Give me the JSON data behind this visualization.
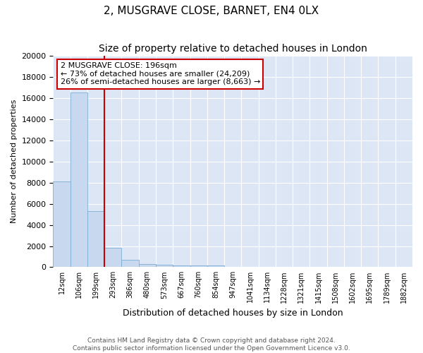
{
  "title1": "2, MUSGRAVE CLOSE, BARNET, EN4 0LX",
  "title2": "Size of property relative to detached houses in London",
  "xlabel": "Distribution of detached houses by size in London",
  "ylabel": "Number of detached properties",
  "annotation_title": "2 MUSGRAVE CLOSE: 196sqm",
  "annotation_line1": "← 73% of detached houses are smaller (24,209)",
  "annotation_line2": "26% of semi-detached houses are larger (8,663) →",
  "footer1": "Contains HM Land Registry data © Crown copyright and database right 2024.",
  "footer2": "Contains public sector information licensed under the Open Government Licence v3.0.",
  "bin_labels": [
    "12sqm",
    "106sqm",
    "199sqm",
    "293sqm",
    "386sqm",
    "480sqm",
    "573sqm",
    "667sqm",
    "760sqm",
    "854sqm",
    "947sqm",
    "1041sqm",
    "1134sqm",
    "1228sqm",
    "1321sqm",
    "1415sqm",
    "1508sqm",
    "1602sqm",
    "1695sqm",
    "1789sqm",
    "1882sqm"
  ],
  "bar_values": [
    8100,
    16500,
    5300,
    1850,
    700,
    300,
    200,
    175,
    150,
    130,
    0,
    0,
    0,
    0,
    0,
    0,
    0,
    0,
    0,
    0,
    0
  ],
  "red_line_bin": 2,
  "bar_fill_color": "#c8d8ee",
  "bar_edge_color": "#7aadd4",
  "red_line_color": "#cc0000",
  "ylim": [
    0,
    20000
  ],
  "yticks": [
    0,
    2000,
    4000,
    6000,
    8000,
    10000,
    12000,
    14000,
    16000,
    18000,
    20000
  ],
  "plot_bg_color": "#dce6f5",
  "fig_bg_color": "#ffffff",
  "grid_color": "#ffffff",
  "annotation_box_facecolor": "#ffffff",
  "annotation_box_edgecolor": "#cc0000",
  "title1_fontsize": 11,
  "title2_fontsize": 10,
  "xlabel_fontsize": 9,
  "ylabel_fontsize": 8,
  "tick_fontsize": 7,
  "footer_fontsize": 6.5
}
